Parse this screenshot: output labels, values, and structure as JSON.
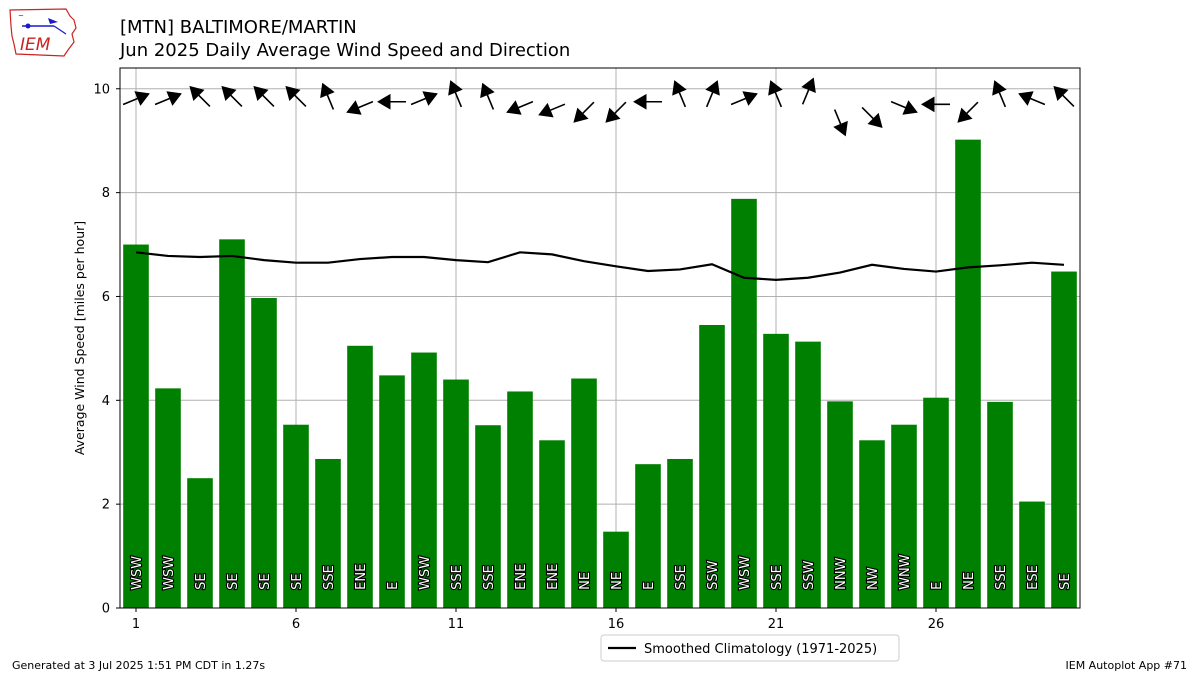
{
  "logo_text": "IEM",
  "title_line1": "[MTN] BALTIMORE/MARTIN",
  "title_line2": "Jun 2025 Daily Average Wind Speed and Direction",
  "footer_left": "Generated at 3 Jul 2025 1:51 PM CDT in 1.27s",
  "footer_right": "IEM Autoplot App #71",
  "colors": {
    "bar": "#008000",
    "line": "#000000",
    "grid": "#b0b0b0",
    "logo": "#cc2222"
  },
  "chart_data": {
    "type": "bar",
    "ylabel": "Average Wind Speed [miles per hour]",
    "ylim": [
      0,
      10.4
    ],
    "yticks": [
      0,
      2,
      4,
      6,
      8,
      10
    ],
    "xlim": [
      0.5,
      30.5
    ],
    "xticks": [
      1,
      6,
      11,
      16,
      21,
      26
    ],
    "grid": true,
    "legend_position": "below center",
    "days": [
      1,
      2,
      3,
      4,
      5,
      6,
      7,
      8,
      9,
      10,
      11,
      12,
      13,
      14,
      15,
      16,
      17,
      18,
      19,
      20,
      21,
      22,
      23,
      24,
      25,
      26,
      27,
      28,
      29,
      30
    ],
    "speed": [
      7.0,
      4.23,
      2.5,
      7.1,
      5.97,
      3.53,
      2.87,
      5.05,
      4.48,
      4.92,
      4.4,
      3.52,
      4.17,
      3.23,
      4.42,
      1.47,
      2.77,
      2.87,
      5.45,
      7.88,
      5.28,
      5.13,
      3.98,
      3.23,
      3.53,
      4.05,
      9.02,
      3.97,
      2.05,
      6.48
    ],
    "direction_labels": [
      "WSW",
      "WSW",
      "SE",
      "SE",
      "SE",
      "SE",
      "SSE",
      "ENE",
      "E",
      "WSW",
      "SSE",
      "SSE",
      "ENE",
      "ENE",
      "NE",
      "NE",
      "E",
      "SSE",
      "SSW",
      "WSW",
      "SSE",
      "SSW",
      "NNW",
      "NW",
      "WNW",
      "E",
      "NE",
      "SSE",
      "ESE",
      "SE"
    ],
    "direction_deg": [
      247.5,
      247.5,
      135,
      135,
      135,
      135,
      157.5,
      67.5,
      90,
      247.5,
      157.5,
      157.5,
      67.5,
      67.5,
      45,
      45,
      90,
      157.5,
      202.5,
      247.5,
      157.5,
      202.5,
      337.5,
      315,
      292.5,
      90,
      45,
      157.5,
      112.5,
      135
    ],
    "arrow_y": [
      9.8,
      9.8,
      9.85,
      9.85,
      9.85,
      9.85,
      9.85,
      9.65,
      9.75,
      9.8,
      9.9,
      9.85,
      9.65,
      9.6,
      9.55,
      9.55,
      9.75,
      9.9,
      9.9,
      9.8,
      9.9,
      9.95,
      9.35,
      9.45,
      9.65,
      9.7,
      9.55,
      9.9,
      9.8,
      9.85
    ],
    "climatology": {
      "name": "Smoothed Climatology (1971-2025)",
      "values": [
        6.85,
        6.78,
        6.76,
        6.78,
        6.7,
        6.65,
        6.65,
        6.72,
        6.76,
        6.76,
        6.7,
        6.66,
        6.85,
        6.81,
        6.68,
        6.58,
        6.49,
        6.52,
        6.62,
        6.36,
        6.32,
        6.36,
        6.46,
        6.61,
        6.53,
        6.48,
        6.56,
        6.6,
        6.65,
        6.61
      ]
    }
  }
}
